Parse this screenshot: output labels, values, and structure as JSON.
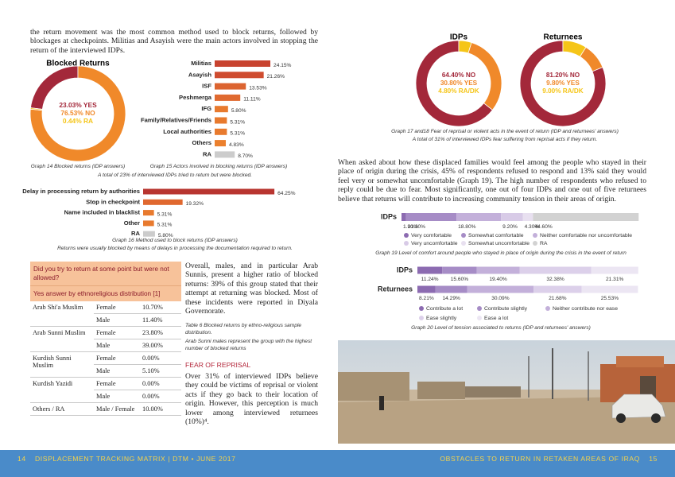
{
  "intro": "the return movement was the most common method used to block returns, followed by blockages at checkpoints. Militias and Asayish were the main actors involved in stopping the return of the interviewed IDPs.",
  "graph14": {
    "type": "pie",
    "title": "Blocked Returns",
    "values": [
      23.03,
      76.53,
      0.44
    ],
    "value_labels": [
      "23.03% YES",
      "76.53% NO",
      "0.44% RA"
    ],
    "colors": [
      "#a3283a",
      "#f0892a",
      "#f5c518"
    ],
    "caption": "Graph 14 Blocked returns (IDP answers)"
  },
  "graph15": {
    "type": "bar",
    "categories": [
      "Militias",
      "Asayish",
      "ISF",
      "Peshmerga",
      "IFG",
      "Family/Relatives/Friends",
      "Local authorities",
      "Others",
      "RA"
    ],
    "values": [
      24.15,
      21.26,
      13.53,
      11.11,
      5.8,
      5.31,
      5.31,
      4.83,
      8.7
    ],
    "value_labels": [
      "24.15%",
      "21.26%",
      "13.53%",
      "11.11%",
      "5.80%",
      "5.31%",
      "5.31%",
      "4.83%",
      "8.70%"
    ],
    "colors": [
      "#c8432f",
      "#cf4c2f",
      "#dc6430",
      "#e06a30",
      "#e87a2e",
      "#e87a2e",
      "#e87a2e",
      "#eb802e",
      "#cccccc"
    ],
    "caption": "Graph 15 Actors involved in blocking returns (IDP answers)",
    "summary": "A total of 23% of interviewed IDPs tried to return but were blocked."
  },
  "graph16": {
    "type": "bar",
    "categories": [
      "Delay in processing return by authorities",
      "Stop in checkpoint",
      "Name included in blacklist",
      "Other",
      "RA"
    ],
    "values": [
      64.25,
      19.32,
      5.31,
      5.31,
      5.8
    ],
    "value_labels": [
      "64.25%",
      "19.32%",
      "5.31%",
      "5.31%",
      "5.80%"
    ],
    "colors": [
      "#b83530",
      "#e0682f",
      "#e87a2e",
      "#e87a2e",
      "#cccccc"
    ],
    "caption": "Graph 16 Method used to block returns (IDP answers)",
    "summary": "Returns were usually blocked by means of delays in processing the documentation required to return."
  },
  "table": {
    "header": "Did you try to return at some point but were not allowed?",
    "subheader": "Yes answer by ethnoreligious distribution [1]",
    "rows": [
      {
        "group": "Arab Shi'a Muslim",
        "cells": [
          [
            "Female",
            "10.70%"
          ],
          [
            "Male",
            "11.40%"
          ]
        ]
      },
      {
        "group": "Arab Sunni Muslim",
        "cells": [
          [
            "Female",
            "23.80%"
          ],
          [
            "Male",
            "39.00%"
          ]
        ]
      },
      {
        "group": "Kurdish Sunni Muslim",
        "cells": [
          [
            "Female",
            "0.00%"
          ],
          [
            "Male",
            "5.10%"
          ]
        ]
      },
      {
        "group": "Kurdish Yazidi",
        "cells": [
          [
            "Female",
            "0.00%"
          ],
          [
            "Male",
            "0.00%"
          ]
        ]
      },
      {
        "group": "Others / RA",
        "cells": [
          [
            "Male / Female",
            "10.00%"
          ]
        ]
      }
    ]
  },
  "body_text": "Overall, males, and in particular Arab Sunnis, present a higher ratio of blocked returns: 39% of this group stated that their attempt at returning was blocked. Most of these incidents were reported in Diyala Governorate.",
  "table_caption": "Table 6 Blocked returns by ethno-religious sample distribution.",
  "table_note": "Arab Sunni males represent the group with the highest number of blocked returns",
  "fear_heading": "FEAR OF REPRISAL",
  "fear_text": "Over 31% of interviewed IDPs believe they could be victims of reprisal or violent acts if they go back to their location of origin. However, this perception is much lower among interviewed returnees (10%)⁴.",
  "graph17_18": {
    "type": "pie",
    "charts": [
      {
        "title": "IDPs",
        "values": [
          64.4,
          30.8,
          4.8
        ],
        "value_labels": [
          "64.40% NO",
          "30.80% YES",
          "4.80% RA/DK"
        ],
        "colors": [
          "#a3283a",
          "#f0892a",
          "#f5c518"
        ]
      },
      {
        "title": "Returnees",
        "values": [
          81.2,
          9.8,
          9.0
        ],
        "value_labels": [
          "81.20% NO",
          "9.80% YES",
          "9.00% RA/DK"
        ],
        "colors": [
          "#a3283a",
          "#f0892a",
          "#f5c518"
        ]
      }
    ],
    "caption": "Graph 17 and18 Fear of reprisal or violent acts in the event of return (IDP and returnees' answers)",
    "summary": "A total of 31% of interviewed IDPs fear suffering from reprisal acts if they return."
  },
  "paragraph_right": "When asked about how these displaced families would feel among the people who stayed in their place of origin during the crisis, 45% of respondents refused to respond and 13% said they would feel very or somewhat uncomfortable (Graph 19). The high number of respondents who refused to reply could be due to fear. Most significantly, one out of four IDPs and one out of five returnees believe that returns will contribute to increasing community tension in their areas of origin.",
  "graph19": {
    "type": "stacked_bar",
    "categories": [
      "IDPs"
    ],
    "series": [
      {
        "name": "Very comfortable",
        "color": "#8c6bb1",
        "values": [
          1.9
        ],
        "value_labels": [
          "1.90%"
        ]
      },
      {
        "name": "Somewhat comfortable",
        "color": "#a68cc6",
        "values": [
          21.3
        ],
        "value_labels": [
          "21.30%"
        ]
      },
      {
        "name": "Neither comfortable nor uncomfortable",
        "color": "#c3b0da",
        "values": [
          18.8
        ],
        "value_labels": [
          "18.80%"
        ]
      },
      {
        "name": "Very uncomfortable",
        "color": "#d8cbe7",
        "values": [
          9.2
        ],
        "value_labels": [
          "9.20%"
        ]
      },
      {
        "name": "Somewhat uncomfortable",
        "color": "#e8e0f0",
        "values": [
          4.3
        ],
        "value_labels": [
          "4.30%"
        ]
      },
      {
        "name": "RA",
        "color": "#d2d2d2",
        "values": [
          44.6
        ],
        "value_labels": [
          "44.60%"
        ]
      }
    ],
    "caption": "Graph 19 Level of comfort around people who stayed in place of origin during the crisis in the event of return"
  },
  "graph20": {
    "type": "stacked_bar",
    "categories": [
      "IDPs",
      "Returnees"
    ],
    "series": [
      {
        "name": "Contribute a lot",
        "color": "#8c6bb1",
        "values": [
          11.24,
          8.21
        ],
        "value_labels": [
          "11.24%",
          "8.21%"
        ]
      },
      {
        "name": "Contribute slightly",
        "color": "#a68cc6",
        "values": [
          15.6,
          14.29
        ],
        "value_labels": [
          "15.60%",
          "14.29%"
        ]
      },
      {
        "name": "Neither contribute nor ease",
        "color": "#c3b0da",
        "values": [
          19.4,
          30.09
        ],
        "value_labels": [
          "19.40%",
          "30.09%"
        ]
      },
      {
        "name": "Ease slightly",
        "color": "#dcd0ea",
        "values": [
          32.38,
          21.68
        ],
        "value_labels": [
          "32.38%",
          "21.68%"
        ]
      },
      {
        "name": "Ease a lot",
        "color": "#ece6f3",
        "values": [
          21.31,
          25.53
        ],
        "value_labels": [
          "21.31%",
          "25.53%"
        ]
      }
    ],
    "caption": "Graph 20 Level of tension associated to returns (IDP and returnees' answers)"
  },
  "footer_left": {
    "page": "14",
    "text": "DISPLACEMENT TRACKING MATRIX | DTM • JUNE 2017"
  },
  "footer_right": {
    "text": "OBSTACLES TO RETURN IN RETAKEN AREAS OF IRAQ",
    "page": "15"
  }
}
